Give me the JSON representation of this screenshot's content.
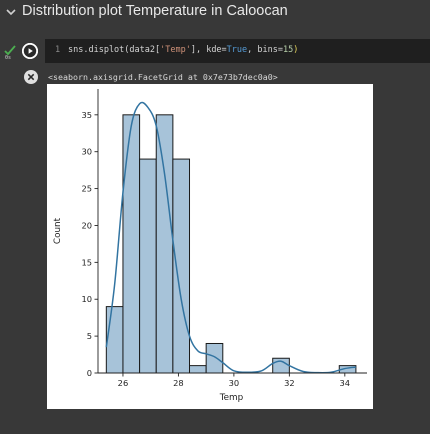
{
  "section": {
    "title": "Distribution plot Temperature in Caloocan"
  },
  "cell": {
    "line_number": "1",
    "code": {
      "prefix": "sns.displot(data2[",
      "arg_str": "'Temp'",
      "mid1": "], kde=",
      "kw_true": "True",
      "mid2": ", bins=",
      "bins_num": "15",
      "close": ")"
    },
    "status_time": "0s"
  },
  "output": {
    "repr_text": "<seaborn.axisgrid.FacetGrid at 0x7e73b7dec0a0>"
  },
  "colors": {
    "bar_fill": "#a7c3d9",
    "bar_edge": "#1a1a1a",
    "kde_line": "#3274a1",
    "status_check": "#4caf50"
  },
  "chart_data": {
    "type": "bar",
    "title": "",
    "xlabel": "Temp",
    "ylabel": "Count",
    "bins": [
      {
        "x0": 25.4,
        "x1": 26.0,
        "count": 9
      },
      {
        "x0": 26.0,
        "x1": 26.6,
        "count": 35
      },
      {
        "x0": 26.6,
        "x1": 27.2,
        "count": 29
      },
      {
        "x0": 27.2,
        "x1": 27.8,
        "count": 35
      },
      {
        "x0": 27.8,
        "x1": 28.4,
        "count": 29
      },
      {
        "x0": 28.4,
        "x1": 29.0,
        "count": 1
      },
      {
        "x0": 29.0,
        "x1": 29.6,
        "count": 4
      },
      {
        "x0": 29.6,
        "x1": 30.2,
        "count": 0
      },
      {
        "x0": 30.2,
        "x1": 30.8,
        "count": 0
      },
      {
        "x0": 30.8,
        "x1": 31.4,
        "count": 0
      },
      {
        "x0": 31.4,
        "x1": 32.0,
        "count": 2
      },
      {
        "x0": 32.0,
        "x1": 32.6,
        "count": 0
      },
      {
        "x0": 32.6,
        "x1": 33.2,
        "count": 0
      },
      {
        "x0": 33.2,
        "x1": 33.8,
        "count": 0
      },
      {
        "x0": 33.8,
        "x1": 34.4,
        "count": 1
      }
    ],
    "kde": {
      "x": [
        25.4,
        25.7,
        26.0,
        26.3,
        26.6,
        26.9,
        27.2,
        27.5,
        27.8,
        28.1,
        28.4,
        28.7,
        29.0,
        29.3,
        29.6,
        30.0,
        30.5,
        31.0,
        31.4,
        31.7,
        32.0,
        32.5,
        33.0,
        33.5,
        34.0,
        34.4
      ],
      "y": [
        3.5,
        12.0,
        24.5,
        33.5,
        36.5,
        36.0,
        33.5,
        27.0,
        18.0,
        10.0,
        5.0,
        3.0,
        2.6,
        2.2,
        1.4,
        0.3,
        0.1,
        0.3,
        1.3,
        1.6,
        1.0,
        0.2,
        0.05,
        0.1,
        0.6,
        0.8
      ]
    },
    "xlim": [
      25.1,
      34.8
    ],
    "ylim": [
      0,
      38.5
    ],
    "xticks": [
      26,
      28,
      30,
      32,
      34
    ],
    "yticks": [
      0,
      5,
      10,
      15,
      20,
      25,
      30,
      35
    ],
    "grid": false,
    "legend": "none"
  }
}
